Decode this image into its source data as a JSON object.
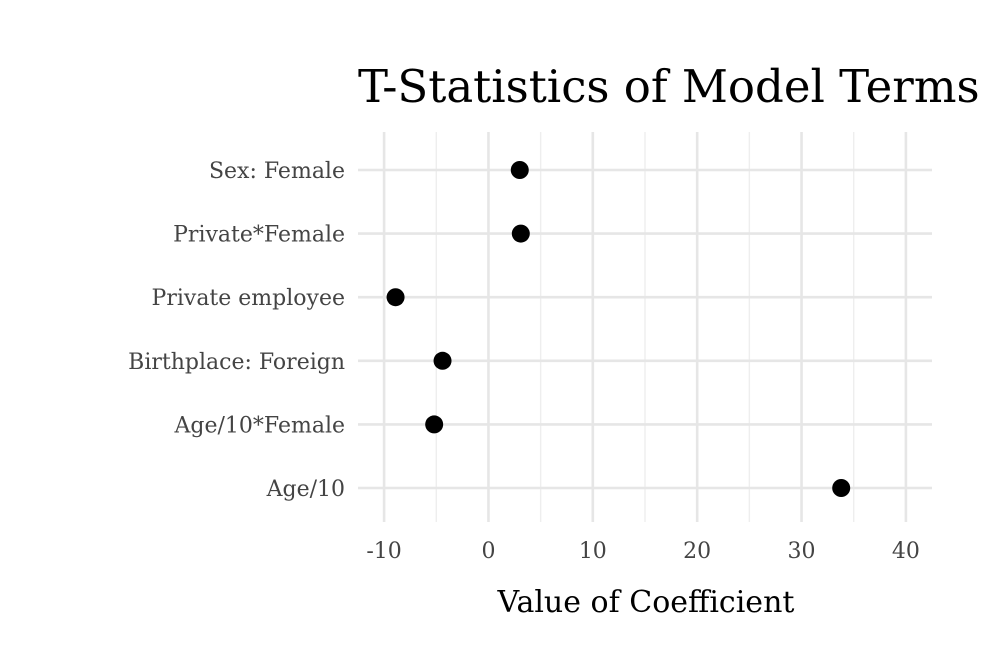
{
  "chart_data": {
    "type": "scatter",
    "title": "T-Statistics of Model Terms",
    "xlabel": "Value of Coefficient",
    "ylabel": "",
    "categories": [
      "Age/10",
      "Age/10*Female",
      "Birthplace: Foreign",
      "Private employee",
      "Private*Female",
      "Sex: Female"
    ],
    "values": [
      33.8,
      -5.2,
      -4.4,
      -8.9,
      3.1,
      3.0
    ],
    "xlim": [
      -12.5,
      42.5
    ],
    "x_ticks": [
      -10,
      0,
      10,
      20,
      30,
      40
    ],
    "x_tick_labels": [
      "-10",
      "0",
      "10",
      "20",
      "30",
      "40"
    ],
    "x_minor_ticks": [
      -5,
      5,
      15,
      25,
      35
    ],
    "grid": true,
    "legend": "none",
    "point_color": "#000000"
  }
}
